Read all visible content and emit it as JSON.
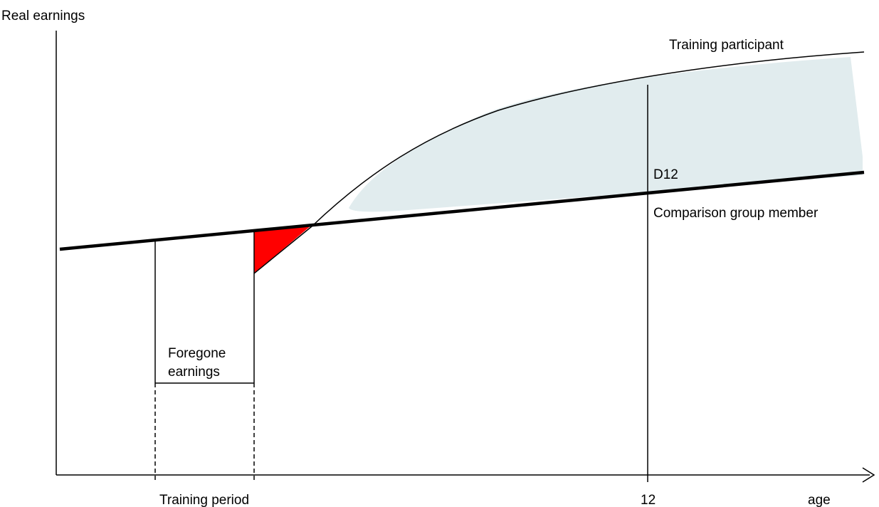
{
  "labels": {
    "y_axis": "Real earnings",
    "x_axis": "age",
    "training_participant": "Training participant",
    "comparison_group": "Comparison group member",
    "d12": "D12",
    "foregone_line1": "Foregone",
    "foregone_line2": "earnings",
    "training_period": "Training period",
    "tick_12": "12"
  },
  "colors": {
    "foregone_fill": "#ff0000",
    "gain_fill": "#e1ecee",
    "line": "#000000"
  }
}
